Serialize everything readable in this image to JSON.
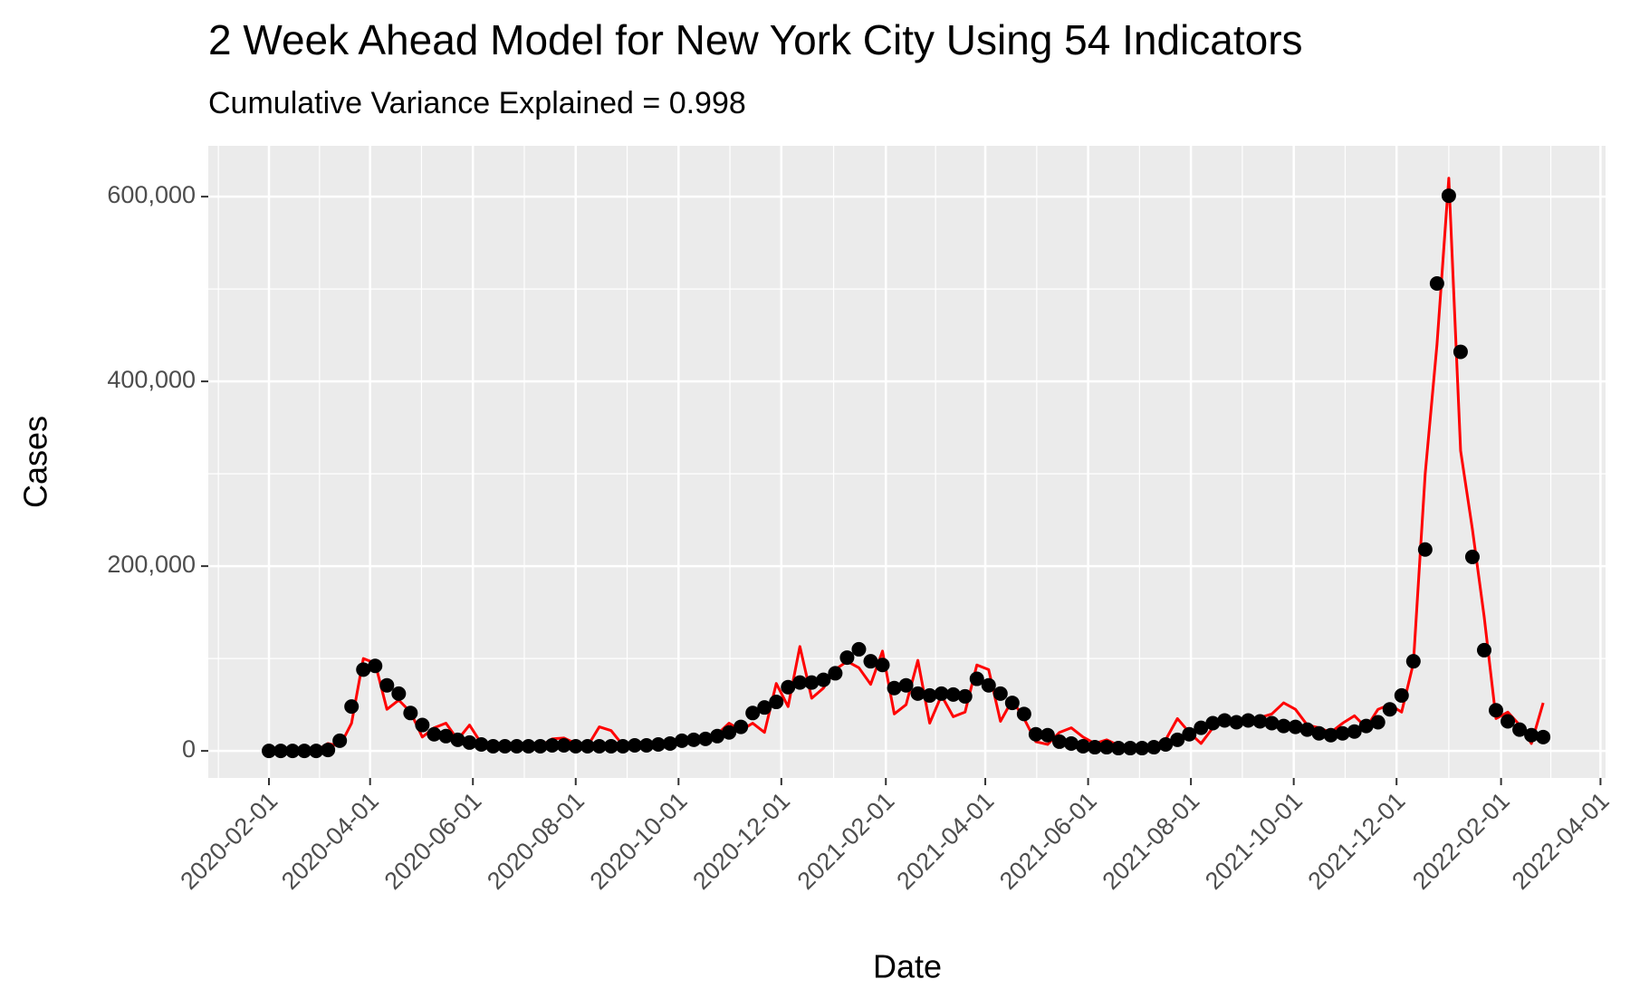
{
  "chart_data": {
    "type": "line",
    "title": "2 Week Ahead Model for New York City Using 54 Indicators",
    "subtitle": "Cumulative Variance Explained = 0.998",
    "x_label": "Date",
    "y_label": "Cases",
    "x": [
      "2020-02-01",
      "2020-02-08",
      "2020-02-15",
      "2020-02-22",
      "2020-02-29",
      "2020-03-07",
      "2020-03-14",
      "2020-03-21",
      "2020-03-28",
      "2020-04-04",
      "2020-04-11",
      "2020-04-18",
      "2020-04-25",
      "2020-05-02",
      "2020-05-09",
      "2020-05-16",
      "2020-05-23",
      "2020-05-30",
      "2020-06-06",
      "2020-06-13",
      "2020-06-20",
      "2020-06-27",
      "2020-07-04",
      "2020-07-11",
      "2020-07-18",
      "2020-07-25",
      "2020-08-01",
      "2020-08-08",
      "2020-08-15",
      "2020-08-22",
      "2020-08-29",
      "2020-09-05",
      "2020-09-12",
      "2020-09-19",
      "2020-09-26",
      "2020-10-03",
      "2020-10-10",
      "2020-10-17",
      "2020-10-24",
      "2020-10-31",
      "2020-11-07",
      "2020-11-14",
      "2020-11-21",
      "2020-11-28",
      "2020-12-05",
      "2020-12-12",
      "2020-12-19",
      "2020-12-26",
      "2021-01-02",
      "2021-01-09",
      "2021-01-16",
      "2021-01-23",
      "2021-01-30",
      "2021-02-06",
      "2021-02-13",
      "2021-02-20",
      "2021-02-27",
      "2021-03-06",
      "2021-03-13",
      "2021-03-20",
      "2021-03-27",
      "2021-04-03",
      "2021-04-10",
      "2021-04-17",
      "2021-04-24",
      "2021-05-01",
      "2021-05-08",
      "2021-05-15",
      "2021-05-22",
      "2021-05-29",
      "2021-06-05",
      "2021-06-12",
      "2021-06-19",
      "2021-06-26",
      "2021-07-03",
      "2021-07-10",
      "2021-07-17",
      "2021-07-24",
      "2021-07-31",
      "2021-08-07",
      "2021-08-14",
      "2021-08-21",
      "2021-08-28",
      "2021-09-04",
      "2021-09-11",
      "2021-09-18",
      "2021-09-25",
      "2021-10-02",
      "2021-10-09",
      "2021-10-16",
      "2021-10-23",
      "2021-10-30",
      "2021-11-06",
      "2021-11-13",
      "2021-11-20",
      "2021-11-27",
      "2021-12-04",
      "2021-12-11",
      "2021-12-18",
      "2021-12-25",
      "2022-01-01",
      "2022-01-08",
      "2022-01-15",
      "2022-01-22",
      "2022-01-29",
      "2022-02-05",
      "2022-02-12",
      "2022-02-19",
      "2022-02-26"
    ],
    "series": [
      {
        "style": "line",
        "color": "#ff0000",
        "values": [
          0,
          0,
          0,
          0,
          0,
          8000,
          5000,
          30000,
          100000,
          95000,
          45000,
          55000,
          42000,
          15000,
          25000,
          30000,
          12000,
          28000,
          8000,
          5000,
          6000,
          5000,
          5000,
          5000,
          13000,
          14000,
          8000,
          5000,
          26000,
          22000,
          6000,
          5000,
          6000,
          7000,
          8000,
          10000,
          9000,
          12000,
          18000,
          30000,
          22000,
          30000,
          20000,
          73000,
          48000,
          113000,
          57000,
          68000,
          88000,
          97000,
          90000,
          72000,
          108000,
          40000,
          50000,
          98000,
          30000,
          60000,
          37000,
          42000,
          93000,
          88000,
          32000,
          55000,
          35000,
          10000,
          7000,
          20000,
          25000,
          15000,
          8000,
          12000,
          6000,
          5000,
          4000,
          6000,
          12000,
          35000,
          20000,
          8000,
          25000,
          35000,
          30000,
          32000,
          36000,
          40000,
          52000,
          45000,
          28000,
          25000,
          20000,
          30000,
          38000,
          25000,
          45000,
          50000,
          42000,
          95000,
          300000,
          440000,
          620000,
          325000,
          240000,
          145000,
          35000,
          42000,
          28000,
          8000,
          52000
        ]
      },
      {
        "style": "points",
        "color": "#000000",
        "values": [
          0,
          0,
          0,
          0,
          0,
          1000,
          11000,
          48000,
          88000,
          92000,
          71000,
          62000,
          41000,
          28000,
          18000,
          16000,
          12000,
          9000,
          7000,
          5000,
          5000,
          5000,
          5000,
          5000,
          6000,
          6000,
          5000,
          5000,
          5000,
          5000,
          5000,
          6000,
          6000,
          7000,
          8000,
          11000,
          12000,
          13000,
          16000,
          20000,
          26000,
          41000,
          47000,
          53000,
          69000,
          74000,
          74000,
          77000,
          84000,
          101000,
          110000,
          97000,
          93000,
          68000,
          71000,
          62000,
          60000,
          62000,
          61000,
          59000,
          78000,
          71000,
          62000,
          52000,
          40000,
          18000,
          17000,
          10000,
          8000,
          5000,
          4000,
          4000,
          3000,
          3000,
          3000,
          4000,
          7000,
          12000,
          18000,
          25000,
          30000,
          33000,
          31000,
          33000,
          32000,
          30000,
          27000,
          26000,
          23000,
          19000,
          17000,
          19000,
          21000,
          27000,
          31000,
          45000,
          60000,
          97000,
          218000,
          506000,
          601000,
          432000,
          210000,
          109000,
          44000,
          32000,
          23000,
          17000,
          15000
        ]
      }
    ],
    "xlim": [
      "2019-12-27",
      "2022-04-04"
    ],
    "xticks": [
      "2020-02-01",
      "2020-04-01",
      "2020-06-01",
      "2020-08-01",
      "2020-10-01",
      "2020-12-01",
      "2021-02-01",
      "2021-04-01",
      "2021-06-01",
      "2021-08-01",
      "2021-10-01",
      "2021-12-01",
      "2022-02-01",
      "2022-04-01"
    ],
    "ylim": [
      -29300,
      655000
    ],
    "yticks": [
      0,
      {
        "value": 200000,
        "label": "200,000"
      },
      {
        "value": 400000,
        "label": "400,000"
      },
      {
        "value": 600000,
        "label": "600,000"
      }
    ],
    "grid": true
  }
}
